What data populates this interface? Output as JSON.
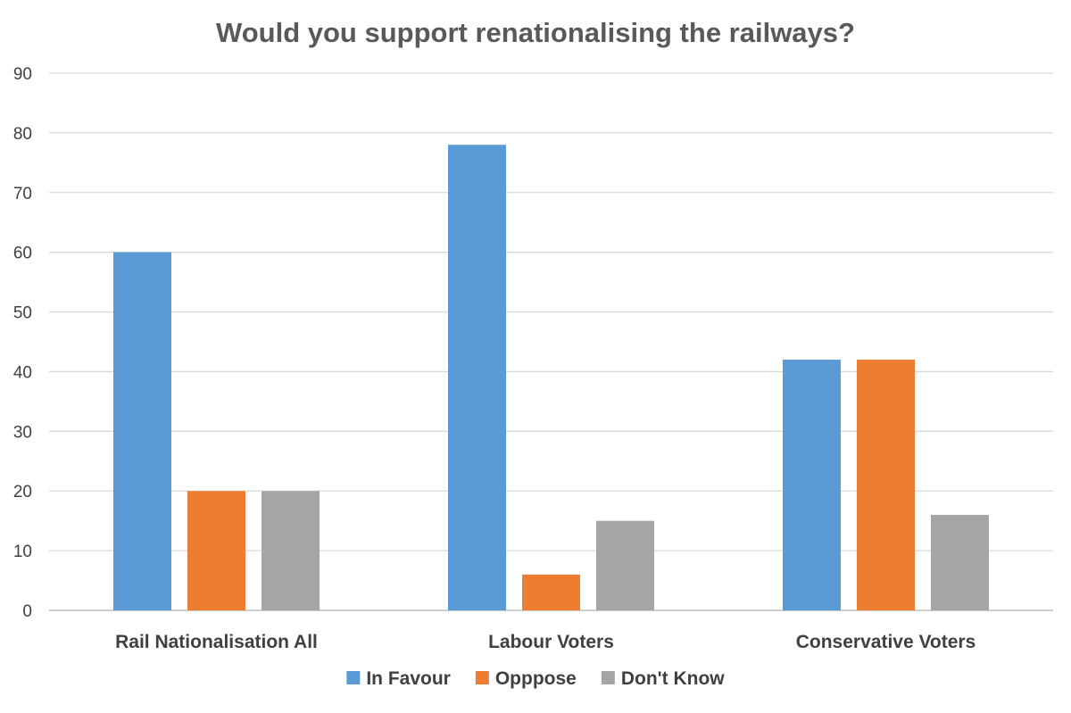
{
  "chart_data": {
    "type": "bar",
    "title": "Would you support renationalising the railways?",
    "xlabel": "",
    "ylabel": "",
    "categories": [
      "Rail Nationalisation All",
      "Labour Voters",
      "Conservative Voters"
    ],
    "series": [
      {
        "name": "In Favour",
        "color": "#5b9bd5",
        "values": [
          60,
          78,
          42
        ]
      },
      {
        "name": "Opppose",
        "color": "#ed7d31",
        "values": [
          20,
          6,
          42
        ]
      },
      {
        "name": "Don't Know",
        "color": "#a5a5a5",
        "values": [
          20,
          15,
          16
        ]
      }
    ],
    "ylim": [
      0,
      90
    ],
    "yticks": [
      0,
      10,
      20,
      30,
      40,
      50,
      60,
      70,
      80,
      90
    ],
    "grid": true,
    "legend_position": "bottom"
  }
}
